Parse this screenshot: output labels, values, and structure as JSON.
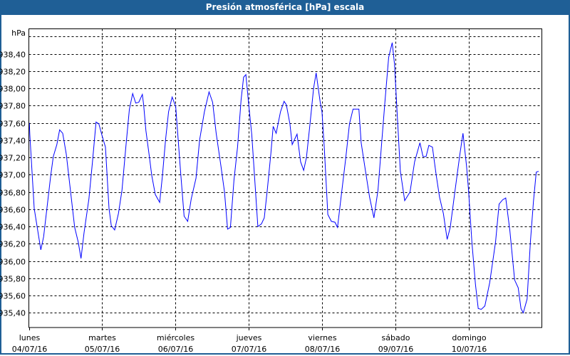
{
  "window": {
    "title": "Presión atmosférica [hPa] escala",
    "title_bg": "#1f5f96"
  },
  "chart_data": {
    "type": "line",
    "title": "Presión atmosférica [hPa] escala",
    "ylabel": "hPa",
    "xlabel": "",
    "ylim": [
      935.23,
      938.69
    ],
    "yticks": [
      938.6,
      938.4,
      938.2,
      938.0,
      937.8,
      937.6,
      937.4,
      937.2,
      937.0,
      936.8,
      936.6,
      936.4,
      936.2,
      936.0,
      935.8,
      935.6,
      935.4
    ],
    "ytick_labels": [
      "",
      "938,40",
      "938,20",
      "938,00",
      "937,80",
      "937,60",
      "937,40",
      "937,20",
      "937,00",
      "936,80",
      "936,60",
      "936,40",
      "936,20",
      "936,00",
      "935,80",
      "935,60",
      "935,40"
    ],
    "xlim": [
      "04/07/16 00:00",
      "11/07/16 00:00"
    ],
    "xticks": [
      {
        "day": "lunes",
        "date": "04/07/16"
      },
      {
        "day": "martes",
        "date": "05/07/16"
      },
      {
        "day": "miércoles",
        "date": "06/07/16"
      },
      {
        "day": "jueves",
        "date": "07/07/16"
      },
      {
        "day": "viernes",
        "date": "08/07/16"
      },
      {
        "day": "sábado",
        "date": "09/07/16"
      },
      {
        "day": "domingo",
        "date": "10/07/16"
      }
    ],
    "grid": true,
    "line_color": "#0000ff",
    "points": [
      [
        "04/07/16 00:10",
        937.6
      ],
      [
        "04/07/16 00:20",
        937.46
      ],
      [
        "04/07/16 01:45",
        936.61
      ],
      [
        "04/07/16 03:55",
        936.13
      ],
      [
        "04/07/16 04:50",
        936.28
      ],
      [
        "04/07/16 07:10",
        936.99
      ],
      [
        "04/07/16 08:00",
        937.21
      ],
      [
        "04/07/16 09:10",
        937.35
      ],
      [
        "04/07/16 10:05",
        937.52
      ],
      [
        "04/07/16 11:05",
        937.48
      ],
      [
        "04/07/16 12:15",
        937.24
      ],
      [
        "04/07/16 13:25",
        936.88
      ],
      [
        "04/07/16 15:00",
        936.39
      ],
      [
        "04/07/16 16:10",
        936.22
      ],
      [
        "04/07/16 17:05",
        936.03
      ],
      [
        "04/07/16 18:05",
        936.33
      ],
      [
        "04/07/16 19:40",
        936.72
      ],
      [
        "04/07/16 20:50",
        937.15
      ],
      [
        "04/07/16 22:00",
        937.61
      ],
      [
        "04/07/16 22:55",
        937.59
      ],
      [
        "04/07/16 23:55",
        937.46
      ],
      [
        "05/07/16 01:05",
        937.32
      ],
      [
        "05/07/16 02:15",
        936.61
      ],
      [
        "05/07/16 03:00",
        936.41
      ],
      [
        "05/07/16 04:05",
        936.36
      ],
      [
        "05/07/16 05:20",
        936.55
      ],
      [
        "05/07/16 06:30",
        936.82
      ],
      [
        "05/07/16 07:45",
        937.32
      ],
      [
        "05/07/16 08:55",
        937.76
      ],
      [
        "05/07/16 10:00",
        937.94
      ],
      [
        "05/07/16 11:00",
        937.83
      ],
      [
        "05/07/16 12:00",
        937.84
      ],
      [
        "05/07/16 13:10",
        937.93
      ],
      [
        "05/07/16 13:35",
        937.81
      ],
      [
        "05/07/16 14:20",
        937.51
      ],
      [
        "05/07/16 15:30",
        937.2
      ],
      [
        "05/07/16 16:15",
        936.99
      ],
      [
        "05/07/16 17:25",
        936.77
      ],
      [
        "05/07/16 18:50",
        936.68
      ],
      [
        "05/07/16 19:45",
        936.99
      ],
      [
        "05/07/16 20:45",
        937.4
      ],
      [
        "05/07/16 21:45",
        937.73
      ],
      [
        "05/07/16 22:55",
        937.9
      ],
      [
        "06/07/16 00:05",
        937.79
      ],
      [
        "06/07/16 01:40",
        937.04
      ],
      [
        "06/07/16 02:50",
        936.52
      ],
      [
        "06/07/16 04:00",
        936.46
      ],
      [
        "06/07/16 05:10",
        936.72
      ],
      [
        "06/07/16 06:45",
        936.96
      ],
      [
        "06/07/16 07:55",
        937.4
      ],
      [
        "06/07/16 09:30",
        937.73
      ],
      [
        "06/07/16 11:00",
        937.96
      ],
      [
        "06/07/16 12:10",
        937.84
      ],
      [
        "06/07/16 13:20",
        937.48
      ],
      [
        "06/07/16 14:55",
        937.1
      ],
      [
        "06/07/16 16:05",
        936.8
      ],
      [
        "06/07/16 17:05",
        936.37
      ],
      [
        "06/07/16 18:00",
        936.39
      ],
      [
        "06/07/16 19:10",
        936.94
      ],
      [
        "06/07/16 20:20",
        937.32
      ],
      [
        "06/07/16 21:30",
        937.87
      ],
      [
        "06/07/16 22:20",
        938.13
      ],
      [
        "06/07/16 23:05",
        938.16
      ],
      [
        "06/07/16 23:50",
        937.87
      ],
      [
        "07/07/16 01:00",
        937.46
      ],
      [
        "07/07/16 02:15",
        936.8
      ],
      [
        "07/07/16 03:00",
        936.4
      ],
      [
        "07/07/16 04:10",
        936.43
      ],
      [
        "07/07/16 05:05",
        936.5
      ],
      [
        "07/07/16 06:05",
        936.82
      ],
      [
        "07/07/16 07:15",
        937.24
      ],
      [
        "07/07/16 08:00",
        937.56
      ],
      [
        "07/07/16 09:00",
        937.48
      ],
      [
        "07/07/16 10:25",
        937.73
      ],
      [
        "07/07/16 11:35",
        937.85
      ],
      [
        "07/07/16 12:20",
        937.81
      ],
      [
        "07/07/16 13:30",
        937.59
      ],
      [
        "07/07/16 14:15",
        937.35
      ],
      [
        "07/07/16 15:50",
        937.47
      ],
      [
        "07/07/16 17:00",
        937.15
      ],
      [
        "07/07/16 18:00",
        937.05
      ],
      [
        "07/07/16 18:55",
        937.2
      ],
      [
        "07/07/16 20:05",
        937.59
      ],
      [
        "07/07/16 21:15",
        938.0
      ],
      [
        "07/07/16 22:05",
        938.18
      ],
      [
        "07/07/16 23:25",
        937.84
      ],
      [
        "08/07/16 00:00",
        937.73
      ],
      [
        "08/07/16 00:45",
        937.32
      ],
      [
        "08/07/16 01:55",
        936.54
      ],
      [
        "08/07/16 03:05",
        936.46
      ],
      [
        "08/07/16 04:15",
        936.45
      ],
      [
        "08/07/16 05:05",
        936.39
      ],
      [
        "08/07/16 06:15",
        936.74
      ],
      [
        "08/07/16 07:45",
        937.18
      ],
      [
        "08/07/16 09:00",
        937.59
      ],
      [
        "08/07/16 10:10",
        937.76
      ],
      [
        "08/07/16 12:05",
        937.76
      ],
      [
        "08/07/16 12:50",
        937.37
      ],
      [
        "08/07/16 14:00",
        937.1
      ],
      [
        "08/07/16 15:35",
        936.74
      ],
      [
        "08/07/16 17:00",
        936.5
      ],
      [
        "08/07/16 18:20",
        936.82
      ],
      [
        "08/07/16 19:30",
        937.35
      ],
      [
        "08/07/16 20:40",
        937.87
      ],
      [
        "08/07/16 21:50",
        938.36
      ],
      [
        "08/07/16 23:00",
        938.53
      ],
      [
        "08/07/16 23:45",
        938.28
      ],
      [
        "09/07/16 00:30",
        937.79
      ],
      [
        "09/07/16 01:40",
        937.04
      ],
      [
        "09/07/16 03:05",
        936.7
      ],
      [
        "09/07/16 04:50",
        936.8
      ],
      [
        "09/07/16 06:20",
        937.15
      ],
      [
        "09/07/16 08:05",
        937.37
      ],
      [
        "09/07/16 09:05",
        937.21
      ],
      [
        "09/07/16 10:05",
        937.21
      ],
      [
        "09/07/16 11:00",
        937.34
      ],
      [
        "09/07/16 12:10",
        937.32
      ],
      [
        "09/07/16 13:25",
        936.99
      ],
      [
        "09/07/16 14:30",
        936.74
      ],
      [
        "09/07/16 15:45",
        936.55
      ],
      [
        "09/07/16 17:00",
        936.25
      ],
      [
        "09/07/16 18:00",
        936.39
      ],
      [
        "09/07/16 19:35",
        936.82
      ],
      [
        "09/07/16 21:10",
        937.24
      ],
      [
        "09/07/16 22:10",
        937.48
      ],
      [
        "09/07/16 23:20",
        937.1
      ],
      [
        "10/07/16 00:00",
        936.82
      ],
      [
        "10/07/16 01:05",
        936.22
      ],
      [
        "10/07/16 02:15",
        935.73
      ],
      [
        "10/07/16 03:10",
        935.45
      ],
      [
        "10/07/16 04:10",
        935.44
      ],
      [
        "10/07/16 05:20",
        935.48
      ],
      [
        "10/07/16 06:55",
        935.75
      ],
      [
        "10/07/16 08:50",
        936.22
      ],
      [
        "10/07/16 10:00",
        936.66
      ],
      [
        "10/07/16 11:10",
        936.71
      ],
      [
        "10/07/16 12:10",
        936.73
      ],
      [
        "10/07/16 13:30",
        936.36
      ],
      [
        "10/07/16 15:05",
        935.78
      ],
      [
        "10/07/16 16:15",
        935.69
      ],
      [
        "10/07/16 17:10",
        935.45
      ],
      [
        "10/07/16 17:55",
        935.4
      ],
      [
        "10/07/16 19:10",
        935.56
      ],
      [
        "10/07/16 20:15",
        936.22
      ],
      [
        "10/07/16 21:15",
        936.69
      ],
      [
        "10/07/16 22:10",
        937.03
      ],
      [
        "10/07/16 22:55",
        937.04
      ]
    ]
  }
}
